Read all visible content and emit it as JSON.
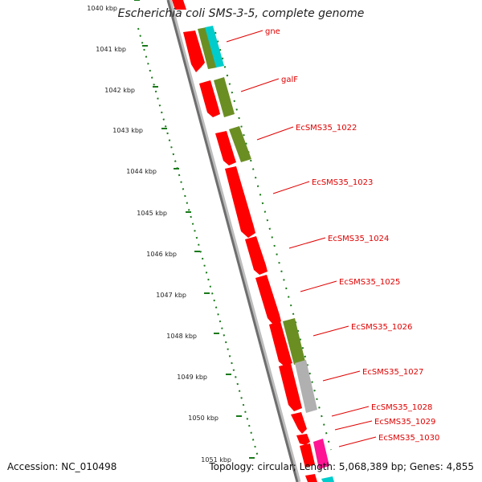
{
  "title": "Escherichia coli SMS-3-5, complete genome",
  "footer": {
    "accession": "Accession: NC_010498",
    "summary": "Topology: circular; Length: 5,068,389 bp; Genes: 4,855"
  },
  "colors": {
    "cds": "#ff0000",
    "olive": "#6b8e23",
    "cyan": "#00cccc",
    "grey": "#b0b0b0",
    "pink": "#ff1493",
    "tick": "#1a7a1a",
    "label": "#e00000"
  },
  "ticks": [
    "1040 kbp",
    "1041 kbp",
    "1042 kbp",
    "1043 kbp",
    "1044 kbp",
    "1045 kbp",
    "1046 kbp",
    "1047 kbp",
    "1048 kbp",
    "1049 kbp",
    "1050 kbp",
    "1051 kbp"
  ],
  "genes": [
    {
      "label": "gne"
    },
    {
      "label": "galF"
    },
    {
      "label": "EcSMS35_1022"
    },
    {
      "label": "EcSMS35_1023"
    },
    {
      "label": "EcSMS35_1024"
    },
    {
      "label": "EcSMS35_1025"
    },
    {
      "label": "EcSMS35_1026"
    },
    {
      "label": "EcSMS35_1027"
    },
    {
      "label": "EcSMS35_1028"
    },
    {
      "label": "EcSMS35_1029"
    },
    {
      "label": "EcSMS35_1030"
    }
  ]
}
